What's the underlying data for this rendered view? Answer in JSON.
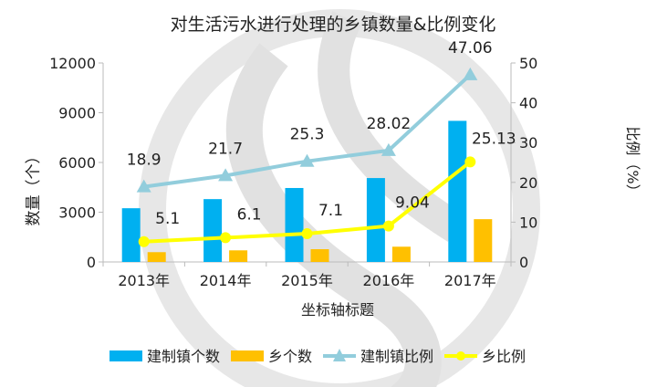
{
  "chart_data": {
    "type": "bar",
    "title": "对生活污水进行处理的乡镇数量&比例变化",
    "xlabel": "坐标轴标题",
    "ylabel": "数量（个）",
    "y2label": "比例（%）",
    "categories": [
      "2013年",
      "2014年",
      "2015年",
      "2016年",
      "2017年"
    ],
    "ylim": [
      0,
      12000
    ],
    "yticks": [
      "0",
      "3000",
      "6000",
      "9000",
      "12000"
    ],
    "y2lim": [
      0,
      50
    ],
    "y2ticks": [
      "0",
      "10",
      "20",
      "30",
      "40",
      "50"
    ],
    "legend_position": "bottom",
    "series": [
      {
        "name": "建制镇个数",
        "type": "bar",
        "axis": "left",
        "color": "#00B0F0",
        "values": [
          3240,
          3790,
          4460,
          5060,
          8510
        ]
      },
      {
        "name": "乡个数",
        "type": "bar",
        "axis": "left",
        "color": "#FFC000",
        "values": [
          590,
          700,
          770,
          920,
          2580
        ]
      },
      {
        "name": "建制镇比例",
        "type": "line",
        "axis": "right",
        "color": "#92CDDC",
        "marker": "triangle",
        "values": [
          18.9,
          21.7,
          25.3,
          28.02,
          47.06
        ],
        "labels": [
          "18.9",
          "21.7",
          "25.3",
          "28.02",
          "47.06"
        ]
      },
      {
        "name": "乡比例",
        "type": "line",
        "axis": "right",
        "color": "#FFFF00",
        "marker": "circle",
        "values": [
          5.1,
          6.1,
          7.1,
          9.04,
          25.13
        ],
        "labels": [
          "5.1",
          "6.1",
          "7.1",
          "9.04",
          "25.13"
        ]
      }
    ]
  }
}
